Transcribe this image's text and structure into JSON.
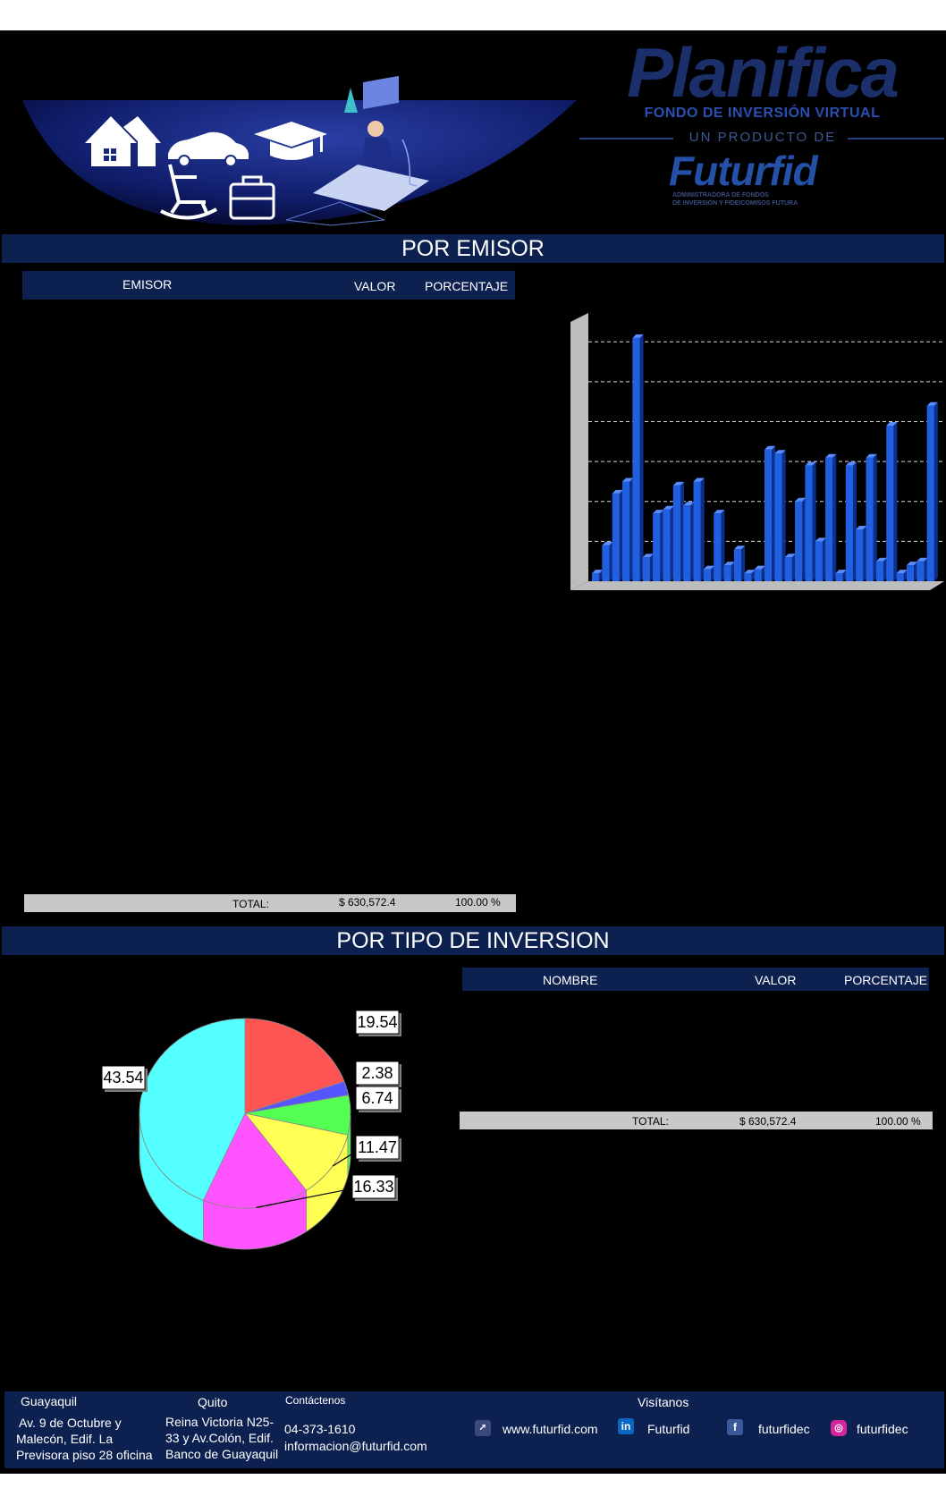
{
  "header": {
    "brand_title": "Planifica",
    "brand_subtitle": "FONDO DE INVERSIÓN VIRTUAL",
    "brand_product": "UN PRODUCTO DE",
    "company_name": "Futurfid",
    "company_tagline_1": "ADMINISTRADORA DE FONDOS",
    "company_tagline_2": "DE INVERSIÓN Y FIDEICOMISOS FUTURA"
  },
  "emisor": {
    "section_title": "POR EMISOR",
    "columns": {
      "emisor": "EMISOR",
      "valor": "VALOR",
      "porcentaje": "PORCENTAJE"
    },
    "total_label": "TOTAL:",
    "total_value": "$ 630,572.4",
    "total_percent": "100.00 %"
  },
  "tipo": {
    "section_title": "POR TIPO DE INVERSION",
    "columns": {
      "nombre": "NOMBRE",
      "valor": "VALOR",
      "porcentaje": "PORCENTAJE"
    },
    "total_label": "TOTAL:",
    "total_value": "$ 630,572.4",
    "total_percent": "100.00  %"
  },
  "chart_data": [
    {
      "type": "bar",
      "title": "",
      "xlabel": "",
      "ylabel": "",
      "ylim": [
        0,
        6.5
      ],
      "grid": true,
      "bar_color": "#1f5fe0",
      "values": [
        0.2,
        0.9,
        2.2,
        2.5,
        6.1,
        0.6,
        1.7,
        1.8,
        2.4,
        1.9,
        2.5,
        0.3,
        1.7,
        0.4,
        0.8,
        0.2,
        0.3,
        3.3,
        3.2,
        0.6,
        2.0,
        2.9,
        1.0,
        3.1,
        0.2,
        2.9,
        1.3,
        3.1,
        0.5,
        3.9,
        0.2,
        0.4,
        0.5,
        4.4
      ]
    },
    {
      "type": "pie",
      "title": "",
      "slices": [
        {
          "label": "19.54",
          "value": 19.54,
          "color": "#ff5454"
        },
        {
          "label": "2.38",
          "value": 2.38,
          "color": "#5656ff"
        },
        {
          "label": "6.74",
          "value": 6.74,
          "color": "#54ff54"
        },
        {
          "label": "11.47",
          "value": 11.47,
          "color": "#ffff54"
        },
        {
          "label": "16.33",
          "value": 16.33,
          "color": "#ff54ff"
        },
        {
          "label": "43.54",
          "value": 43.54,
          "color": "#54ffff"
        }
      ]
    }
  ],
  "footer": {
    "guayaquil_title": "Guayaquil",
    "guayaquil_address_1": "Av. 9 de Octubre y",
    "guayaquil_address_2": "Malecón, Edif. La",
    "guayaquil_address_3": "Previsora piso 28 oficina",
    "quito_title": "Quito",
    "quito_address_1": "Reina Victoria N25-",
    "quito_address_2": "33 y Av.Colón, Edif.",
    "quito_address_3": "Banco de Guayaquil",
    "contact_title": "Contáctenos",
    "phone": "04-373-1610",
    "email": "informacion@futurfid.com",
    "visit_title": "Visítanos",
    "website": "www.futurfid.com",
    "linkedin": "Futurfid",
    "facebook": "futurfidec",
    "instagram": "futurfidec"
  }
}
